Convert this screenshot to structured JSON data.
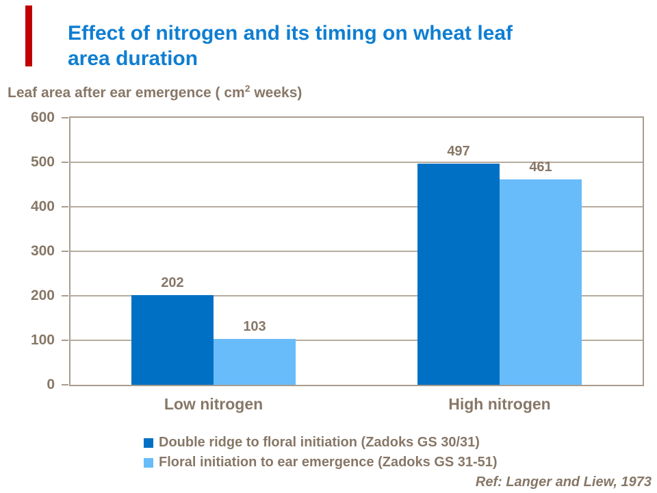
{
  "colors": {
    "accent_red": "#C00000",
    "title_blue": "#0F7ED2",
    "text_brown": "#877767",
    "grid": "#B5AB9D",
    "frame": "#A89C8E",
    "series1": "#0070C4",
    "series2": "#68BCF9",
    "background": "#FFFFFF"
  },
  "title": {
    "line1": "Effect of nitrogen and its timing on wheat leaf",
    "line2": "area duration"
  },
  "subtitle": {
    "pre": "Leaf area after ear emergence ( cm",
    "sup": "2",
    "post": " weeks)"
  },
  "footer": {
    "reference": "Ref: Langer and Liew, 1973"
  },
  "chart_data": {
    "type": "bar",
    "title": "Effect of nitrogen and its timing on wheat leaf area duration",
    "ylabel": "Leaf area after ear emergence ( cm2 weeks)",
    "categories": [
      "Low nitrogen",
      "High nitrogen"
    ],
    "series": [
      {
        "name": "Double ridge to floral initiation (Zadoks GS 30/31)",
        "color": "#0070C4",
        "values": [
          202,
          497
        ]
      },
      {
        "name": "Floral initiation to ear emergence (Zadoks GS 31-51)",
        "color": "#68BCF9",
        "values": [
          103,
          461
        ]
      }
    ],
    "ylim": [
      0,
      600
    ],
    "yticks": [
      0,
      100,
      200,
      300,
      400,
      500,
      600
    ],
    "grid": true,
    "value_labels": true,
    "legend_position": "bottom-left"
  }
}
